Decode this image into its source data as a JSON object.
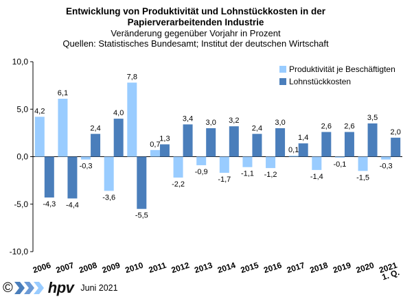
{
  "title": {
    "line1": "Entwicklung von Produktivität und Lohnstückkosten  in der",
    "line2": "Papierverarbeitenden Industrie",
    "line3": "Veränderung  gegenüber  Vorjahr  in Prozent",
    "line4": "Quellen:  Statistisches Bundesamt;  Institut der deutschen Wirtschaft"
  },
  "footer": {
    "copyright": "©",
    "brand": "hpv",
    "date": "Juni 2021"
  },
  "chart_data": {
    "type": "bar",
    "categories": [
      "2006",
      "2007",
      "2008",
      "2009",
      "2010",
      "2011",
      "2012",
      "2013",
      "2014",
      "2015",
      "2016",
      "2017",
      "2018",
      "2019",
      "2020",
      "2021"
    ],
    "category_labels": [
      [
        "2006"
      ],
      [
        "2007"
      ],
      [
        "2008"
      ],
      [
        "2009"
      ],
      [
        "2010"
      ],
      [
        "2011"
      ],
      [
        "2012"
      ],
      [
        "2013"
      ],
      [
        "2014"
      ],
      [
        "2015"
      ],
      [
        "2016"
      ],
      [
        "2017"
      ],
      [
        "2018"
      ],
      [
        "2019"
      ],
      [
        "2020"
      ],
      [
        "2021",
        "1. Q."
      ]
    ],
    "series": [
      {
        "name": "Produktivität je Beschäftigten",
        "color": "#99ccff",
        "values": [
          4.2,
          6.1,
          -0.3,
          -3.6,
          7.8,
          0.7,
          -2.2,
          -0.9,
          -1.7,
          -1.1,
          -1.2,
          0.1,
          -1.4,
          -0.1,
          -1.5,
          -0.3
        ]
      },
      {
        "name": "Lohnstückkosten",
        "color": "#4a7ebb",
        "values": [
          -4.3,
          -4.4,
          2.4,
          4.0,
          -5.5,
          1.3,
          3.4,
          3.0,
          3.2,
          2.4,
          3.0,
          1.4,
          2.6,
          2.6,
          3.5,
          2.0
        ]
      }
    ],
    "data_labels": [
      [
        "4,2",
        "6,1",
        "-0,3",
        "-3,6",
        "7,8",
        "0,7",
        "-2,2",
        "-0,9",
        "-1,7",
        "-1,1",
        "-1,2",
        "0,1",
        "-1,4",
        "-0,1",
        "-1,5",
        "-0,3"
      ],
      [
        "-4,3",
        "-4,4",
        "2,4",
        "4,0",
        "-5,5",
        "1,3",
        "3,4",
        "3,0",
        "3,2",
        "2,4",
        "3,0",
        "1,4",
        "2,6",
        "2,6",
        "3,5",
        "2,0"
      ]
    ],
    "yticks": [
      "10,0",
      "5,0",
      "0,0",
      "-5,0",
      "-10,0"
    ],
    "ytick_values": [
      10,
      5,
      0,
      -5,
      -10
    ],
    "ylim": [
      -10,
      10
    ],
    "grid": false,
    "legend_position": "top-right"
  }
}
